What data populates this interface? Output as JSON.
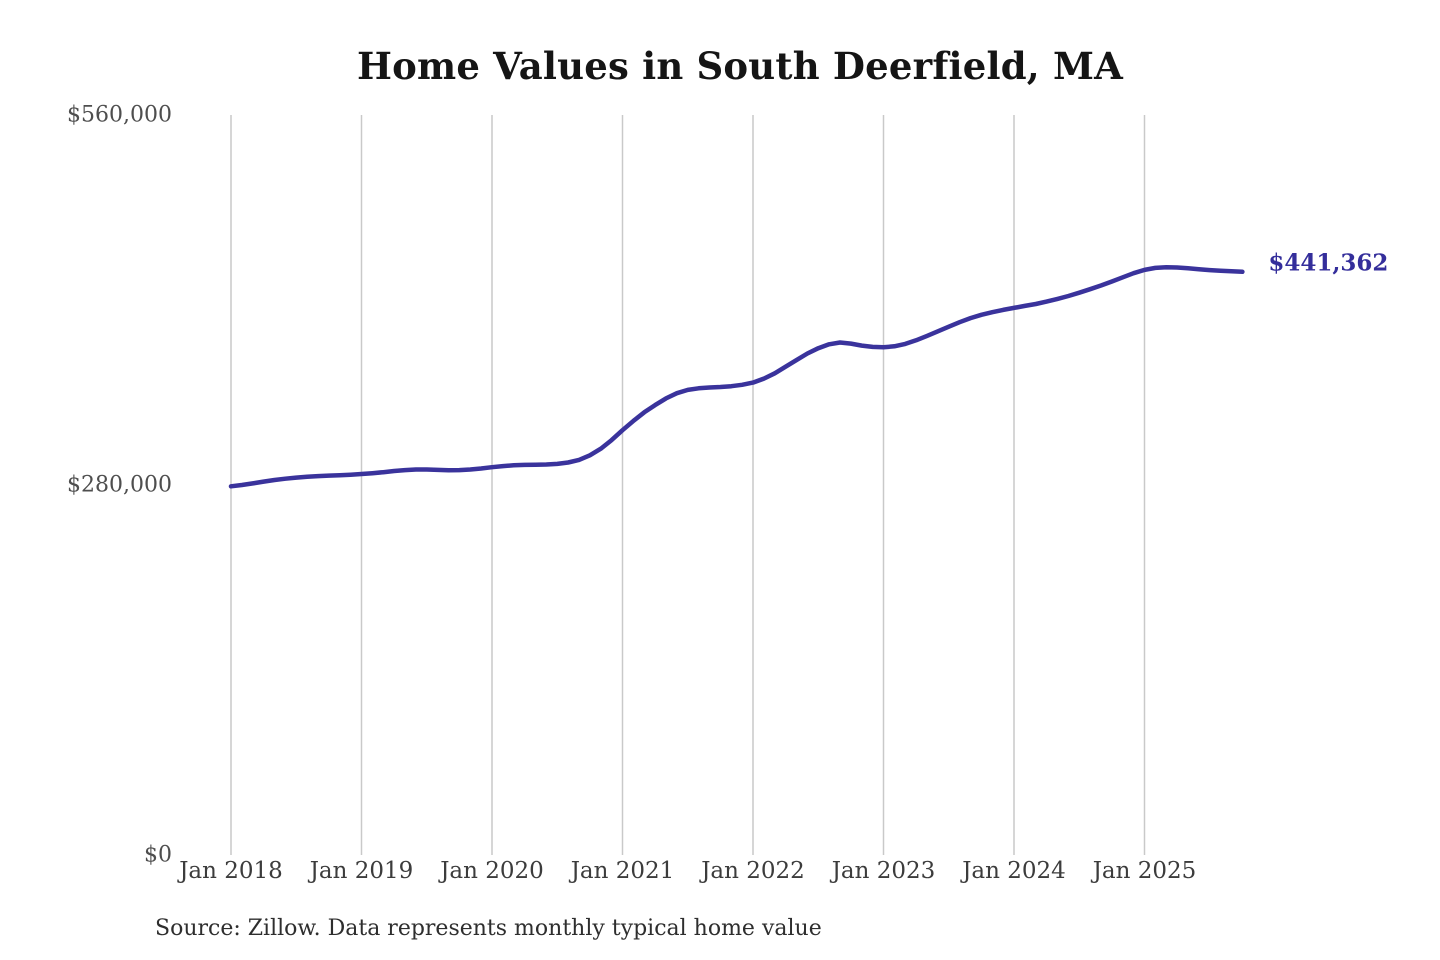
{
  "chart_data": {
    "type": "line",
    "title": "Home Values in South Deerfield, MA",
    "xlabel": "",
    "ylabel": "",
    "x_ticks": [
      "Jan 2018",
      "Jan 2019",
      "Jan 2020",
      "Jan 2021",
      "Jan 2022",
      "Jan 2023",
      "Jan 2024",
      "Jan 2025"
    ],
    "y_ticks": [
      {
        "label": "$560,000",
        "value": 560000
      },
      {
        "label": "$280,000",
        "value": 280000
      },
      {
        "label": "$0",
        "value": 0
      }
    ],
    "ylim": [
      0,
      560000
    ],
    "grid": "vertical-only",
    "legend": "none",
    "point_interval": "month",
    "start_month": "Jan 2018",
    "end_label": "$441,362",
    "end_value": 441362,
    "line_color": "#3a339c",
    "gridline_color": "#c9c9c9",
    "values": [
      279000,
      280000,
      281200,
      282600,
      283800,
      284800,
      285600,
      286200,
      286700,
      287100,
      287400,
      287800,
      288300,
      288900,
      289700,
      290600,
      291300,
      291700,
      291700,
      291400,
      291200,
      291300,
      291700,
      292500,
      293500,
      294300,
      294900,
      295200,
      295300,
      295500,
      296000,
      297000,
      299000,
      302500,
      307500,
      314000,
      321500,
      328500,
      335000,
      340500,
      345500,
      349500,
      352000,
      353200,
      353800,
      354200,
      354800,
      355800,
      357500,
      360500,
      364500,
      369500,
      374500,
      379500,
      383500,
      386500,
      387800,
      387000,
      385500,
      384500,
      384200,
      385000,
      386800,
      389500,
      392800,
      396300,
      399800,
      403200,
      406300,
      408800,
      410800,
      412500,
      414000,
      415500,
      417000,
      418800,
      420800,
      423000,
      425500,
      428200,
      431000,
      434000,
      437200,
      440300,
      442800,
      444300,
      444800,
      444600,
      444000,
      443300,
      442600,
      442100,
      441700,
      441362
    ]
  },
  "source_note": "Source: Zillow. Data represents monthly typical home value"
}
